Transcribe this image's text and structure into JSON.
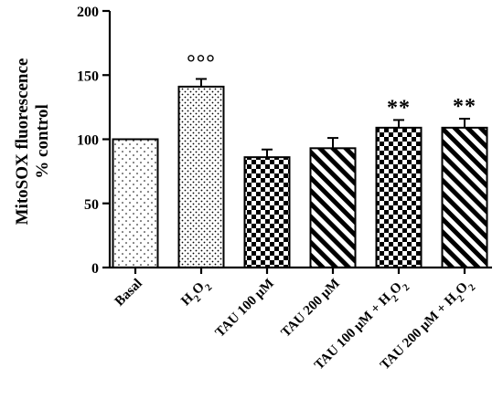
{
  "chart_data": {
    "type": "bar",
    "ylabel_line1": "MitoSOX fluorescence",
    "ylabel_line2": "% control",
    "ylim": [
      0,
      200
    ],
    "yticks": [
      "0",
      "50",
      "100",
      "150",
      "200"
    ],
    "categories": [
      {
        "prefix": "Basal",
        "sub": "",
        "suffix": ""
      },
      {
        "prefix": "H",
        "sub": "2",
        "mid": "O",
        "sub2": "2",
        "suffix": ""
      },
      {
        "prefix": "TAU 100 μM",
        "sub": "",
        "suffix": ""
      },
      {
        "prefix": "TAU 200 μM",
        "sub": "",
        "suffix": ""
      },
      {
        "prefix": "TAU 100 μM + H",
        "sub": "2",
        "mid": "O",
        "sub2": "2",
        "suffix": ""
      },
      {
        "prefix": "TAU 200 μM + H",
        "sub": "2",
        "mid": "O",
        "sub2": "2",
        "suffix": ""
      }
    ],
    "values": [
      100,
      141,
      86,
      93,
      109,
      109
    ],
    "errors": [
      0,
      6,
      6,
      8,
      6,
      7
    ],
    "patterns": [
      "dots-sparse",
      "dots-dense",
      "checker",
      "diagonal",
      "checker",
      "diagonal"
    ],
    "annotations": [
      "",
      "°°°",
      "",
      "",
      "**",
      "**"
    ],
    "grid": false,
    "bar_color": "#000000"
  }
}
